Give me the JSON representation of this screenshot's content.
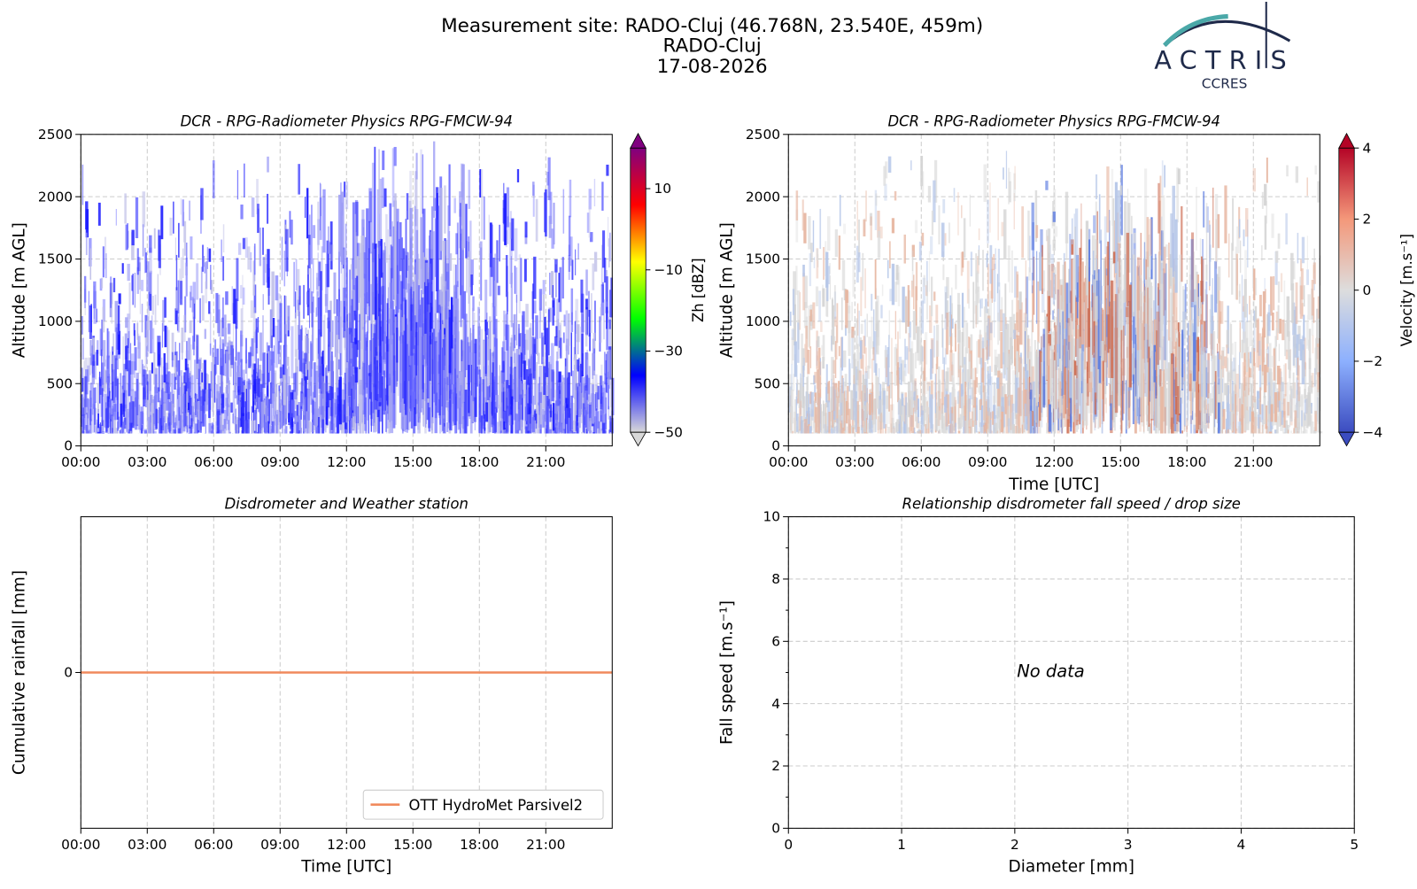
{
  "header": {
    "title": "Measurement site: RADO-Cluj (46.768N, 23.540E, 459m)",
    "site": "RADO-Cluj",
    "date": "17-08-2026",
    "logo": {
      "name": "ACTRIS",
      "subtitle": "CCRES"
    }
  },
  "chart_data": [
    {
      "type": "heatmap",
      "title": "DCR - RPG-Radiometer Physics RPG-FMCW-94",
      "ylabel": "Altitude [m AGL]",
      "xlim": [
        0,
        24
      ],
      "xticks": [
        {
          "value": 0,
          "label": "00:00"
        },
        {
          "value": 3,
          "label": "03:00"
        },
        {
          "value": 6,
          "label": "06:00"
        },
        {
          "value": 9,
          "label": "09:00"
        },
        {
          "value": 12,
          "label": "12:00"
        },
        {
          "value": 15,
          "label": "15:00"
        },
        {
          "value": 18,
          "label": "18:00"
        },
        {
          "value": 21,
          "label": "21:00"
        }
      ],
      "ylim": [
        0,
        2500
      ],
      "yticks": [
        0,
        500,
        1000,
        1500,
        2000,
        2500
      ],
      "grid": true,
      "colorbar_label": "Zh [dBZ]",
      "clim": [
        -50,
        20
      ],
      "cticks": [
        {
          "value": -50,
          "label": "−50"
        },
        {
          "value": -30,
          "label": "−30"
        },
        {
          "value": -10,
          "label": "−10"
        },
        10
      ],
      "colorbar_colors": [
        "#d8d8d8",
        "#0000ff",
        "#00ff00",
        "#ffff00",
        "#ff0000",
        "#800080"
      ]
    },
    {
      "type": "heatmap",
      "title": "DCR - RPG-Radiometer Physics RPG-FMCW-94",
      "ylabel": "Altitude [m AGL]",
      "xlabel": "Time [UTC]",
      "xlim": [
        0,
        24
      ],
      "xticks": [
        {
          "value": 0,
          "label": "00:00"
        },
        {
          "value": 3,
          "label": "03:00"
        },
        {
          "value": 6,
          "label": "06:00"
        },
        {
          "value": 9,
          "label": "09:00"
        },
        {
          "value": 12,
          "label": "12:00"
        },
        {
          "value": 15,
          "label": "15:00"
        },
        {
          "value": 18,
          "label": "18:00"
        },
        {
          "value": 21,
          "label": "21:00"
        }
      ],
      "ylim": [
        0,
        2500
      ],
      "yticks": [
        0,
        500,
        1000,
        1500,
        2000,
        2500
      ],
      "grid": true,
      "colorbar_label": "Velocity [m.s⁻¹]",
      "clim": [
        -4,
        4
      ],
      "cticks": [
        {
          "value": -4,
          "label": "−4"
        },
        {
          "value": -2,
          "label": "−2"
        },
        0,
        2,
        4
      ],
      "colorbar_colors": [
        "#3b4cc0",
        "#8db0fe",
        "#dddddd",
        "#f4987a",
        "#b40426"
      ]
    },
    {
      "type": "line",
      "title": "Disdrometer and Weather station",
      "ylabel": "Cumulative rainfall [mm]",
      "xlabel": "Time [UTC]",
      "xlim": [
        0,
        24
      ],
      "xticks": [
        {
          "value": 0,
          "label": "00:00"
        },
        {
          "value": 3,
          "label": "03:00"
        },
        {
          "value": 6,
          "label": "06:00"
        },
        {
          "value": 9,
          "label": "09:00"
        },
        {
          "value": 12,
          "label": "12:00"
        },
        {
          "value": 15,
          "label": "15:00"
        },
        {
          "value": 18,
          "label": "18:00"
        },
        {
          "value": 21,
          "label": "21:00"
        }
      ],
      "ylim": [
        -0.055,
        0.055
      ],
      "yticks": [
        0
      ],
      "grid": true,
      "legend": "lower right",
      "x": [
        0,
        24
      ],
      "series": [
        {
          "name": "OTT HydroMet Parsivel2",
          "color": "#f08a5d",
          "values": [
            0,
            0
          ]
        }
      ]
    },
    {
      "type": "scatter",
      "title": "Relationship disdrometer fall speed / drop size",
      "xlabel": "Diameter [mm]",
      "ylabel": "Fall speed [m.s⁻¹]",
      "xlim": [
        0,
        5
      ],
      "xticks": [
        0,
        1,
        2,
        3,
        4,
        5
      ],
      "ylim": [
        0,
        10
      ],
      "yticks": [
        0,
        2,
        4,
        6,
        8,
        10
      ],
      "grid": true,
      "annotation": "No data",
      "x": [],
      "values": []
    }
  ]
}
